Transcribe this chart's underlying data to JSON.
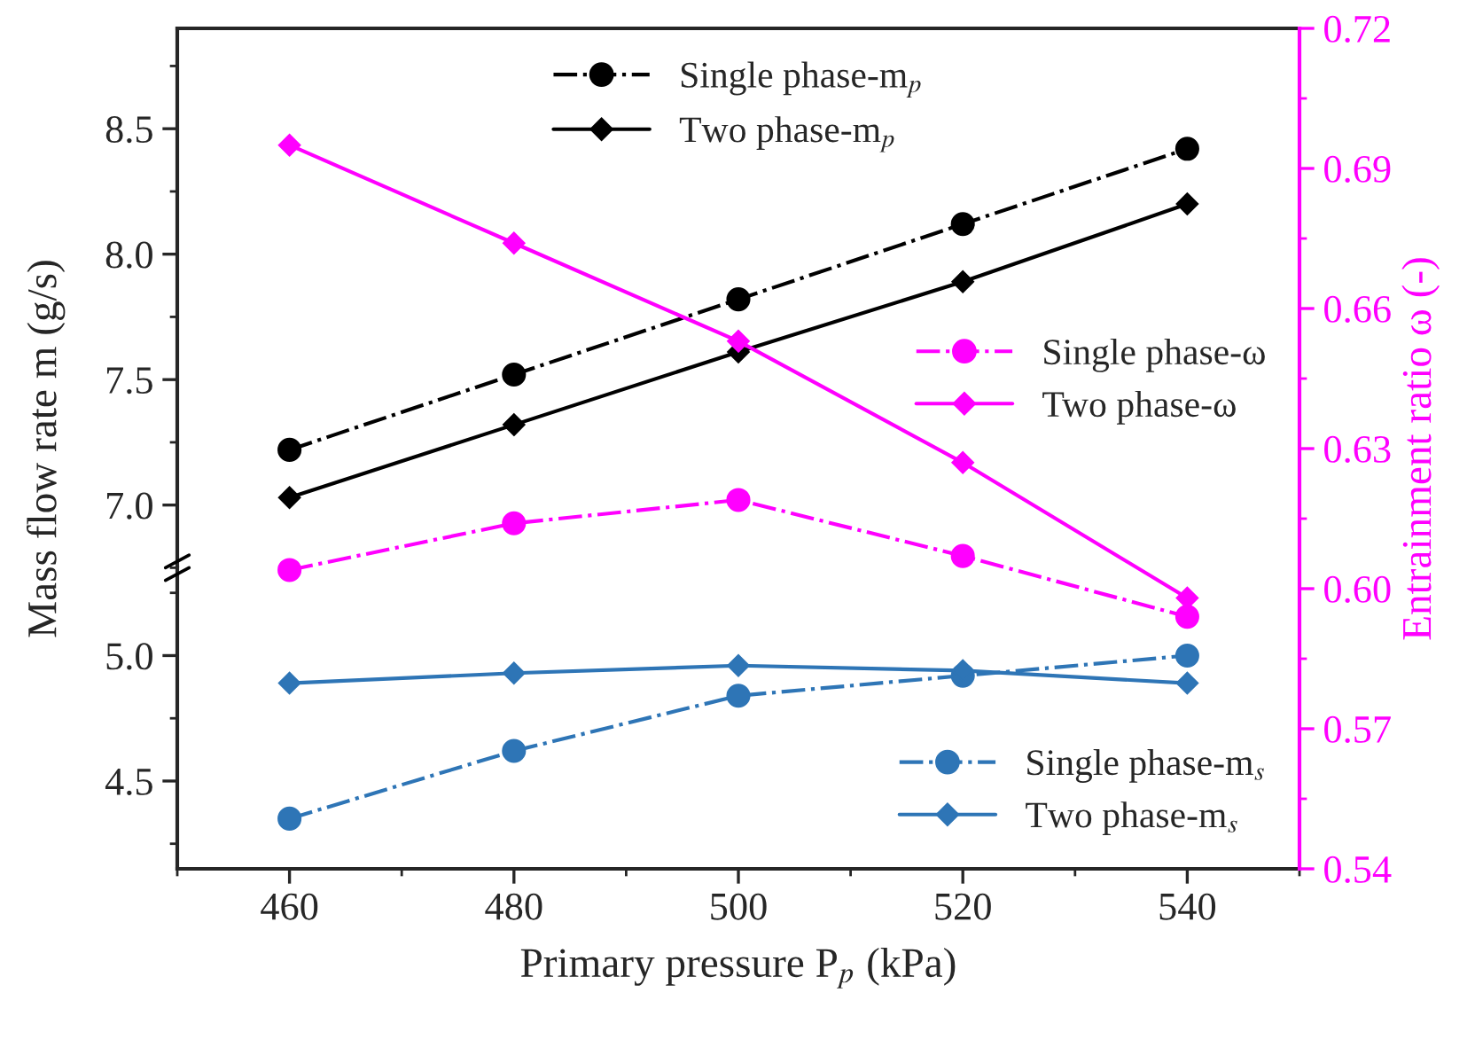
{
  "chart_data": [
    {
      "type": "line",
      "xlim": [
        450,
        550
      ],
      "ylim": [
        6.75,
        8.9
      ],
      "yticks": [
        {
          "value": 7.0,
          "label": "7.0"
        },
        7.5,
        {
          "value": 8.0,
          "label": "8.0"
        },
        8.5
      ],
      "tick_labels": "y",
      "ylabel": "Mass flow rate m (g/s)",
      "legend": "top",
      "x": [
        460,
        480,
        500,
        520,
        540
      ],
      "series": [
        {
          "name": "Single phase-m$_{p}$",
          "color": "#000000",
          "marker": "circle",
          "line_style": "dashdot",
          "values": [
            7.22,
            7.52,
            7.82,
            8.12,
            8.42
          ]
        },
        {
          "name": "Two phase-m$_{p}$",
          "color": "#000000",
          "marker": "diamond",
          "line_style": "solid",
          "values": [
            7.03,
            7.32,
            7.61,
            7.89,
            8.2
          ]
        }
      ]
    },
    {
      "type": "line",
      "xlim": [
        450,
        550
      ],
      "xticks": [
        460,
        480,
        500,
        520,
        540
      ],
      "ylim": [
        4.15,
        5.35
      ],
      "yticks": [
        4.5,
        {
          "value": 5.0,
          "label": "5.0"
        }
      ],
      "xlabel": "Primary pressure P$_{p}$ (kPa)",
      "legend": "bottom right",
      "x": [
        460,
        480,
        500,
        520,
        540
      ],
      "series": [
        {
          "name": "Single phase-m$_{s}$",
          "color": "#2e75b6",
          "marker": "circle",
          "line_style": "dashdot",
          "values": [
            4.35,
            4.62,
            4.84,
            4.92,
            5.0
          ]
        },
        {
          "name": "Two phase-m$_{s}$",
          "color": "#2e75b6",
          "marker": "diamond",
          "line_style": "solid",
          "values": [
            4.89,
            4.93,
            4.96,
            4.94,
            4.89
          ]
        }
      ]
    },
    {
      "type": "line",
      "xlim": [
        450,
        550
      ],
      "y2lim": [
        0.54,
        0.72
      ],
      "y2ticks": [
        {
          "value": 0.54,
          "label": "0.54"
        },
        {
          "value": 0.57,
          "label": "0.57"
        },
        {
          "value": 0.6,
          "label": "0.60"
        },
        {
          "value": 0.63,
          "label": "0.63"
        },
        {
          "value": 0.66,
          "label": "0.66"
        },
        {
          "value": 0.69,
          "label": "0.69"
        },
        {
          "value": 0.72,
          "label": "0.72"
        }
      ],
      "y2label": "Entrainment ratio ω (-)",
      "legend": "right",
      "x": [
        460,
        480,
        500,
        520,
        540
      ],
      "series": [
        {
          "name": "Single phase-ω",
          "axis": "y2",
          "color": "#ff00ff",
          "marker": "circle",
          "line_style": "dashdot",
          "values": [
            0.604,
            0.614,
            0.619,
            0.607,
            0.594
          ]
        },
        {
          "name": "Two phase-ω",
          "axis": "y2",
          "color": "#ff00ff",
          "marker": "diamond",
          "line_style": "solid",
          "values": [
            0.695,
            0.674,
            0.653,
            0.627,
            0.598
          ]
        }
      ]
    }
  ]
}
